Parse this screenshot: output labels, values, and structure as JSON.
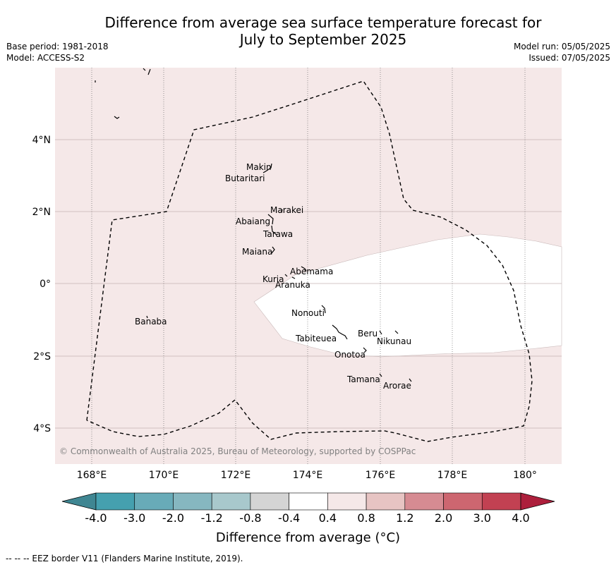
{
  "header": {
    "title_line1": "Difference from average sea surface temperature forecast for",
    "title_line2": "July to September 2025",
    "base_period": "Base period: 1981-2018",
    "model": "Model: ACCESS-S2",
    "model_run": "Model run: 05/05/2025",
    "issued": "Issued: 07/05/2025"
  },
  "map": {
    "lat_ticks": [
      "4°N",
      "2°N",
      "0°",
      "2°S",
      "4°S"
    ],
    "lon_ticks": [
      "168°E",
      "170°E",
      "172°E",
      "174°E",
      "176°E",
      "178°E",
      "180°"
    ],
    "copyright": "© Commonwealth of Australia 2025, Bureau of Meteorology, supported by COSPPac",
    "islands": [
      "Makin",
      "Butaritari",
      "Marakei",
      "Abaiang",
      "Tarawa",
      "Maiana",
      "Abemama",
      "Kuria",
      "Aranuka",
      "Banaba",
      "Nonouti",
      "Beru",
      "Nikunau",
      "Tabiteuea",
      "Onotoa",
      "Tamana",
      "Arorae"
    ],
    "background_category": "0.4 to 0.8",
    "neutral_region_category": "-0.4 to 0.4",
    "colors": {
      "background": "#f5e8e8",
      "neutral": "#ffffff"
    }
  },
  "colorbar": {
    "title": "Difference from average (°C)",
    "ticks": [
      "-4.0",
      "-3.0",
      "-2.0",
      "-1.2",
      "-0.8",
      "-0.4",
      "0.4",
      "0.8",
      "1.2",
      "2.0",
      "3.0",
      "4.0"
    ],
    "colors": [
      "#3f8692",
      "#45a0af",
      "#68abb8",
      "#86b7c0",
      "#a8c8cc",
      "#d4d4d4",
      "#ffffff",
      "#f5e8e8",
      "#e7c4c3",
      "#d68b92",
      "#cd6670",
      "#c24152",
      "#ad1f3c"
    ]
  },
  "footnote": "--  --  -- EEZ border V11 (Flanders Marine Institute, 2019)."
}
